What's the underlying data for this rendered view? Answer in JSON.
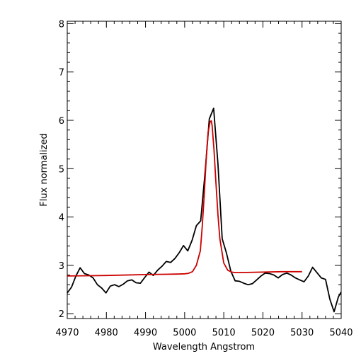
{
  "chart_data": {
    "type": "line",
    "title": "",
    "xlabel": "Wavelength Angstrom",
    "ylabel": "Flux normalized",
    "xlim": [
      4970,
      5040
    ],
    "ylim": [
      1.9,
      8.05
    ],
    "xticks": [
      4970,
      4980,
      4990,
      5000,
      5010,
      5020,
      5030,
      5040
    ],
    "yticks": [
      2,
      3,
      4,
      5,
      6,
      7,
      8
    ],
    "grid": false,
    "legend": "none",
    "colors": {
      "observed": "#000000",
      "fit": "#cc0000",
      "axes": "#000000"
    },
    "series": [
      {
        "key": "observed",
        "x": [
          4970.0,
          4971.1,
          4972.2,
          4973.3,
          4974.4,
          4975.5,
          4976.6,
          4977.7,
          4978.8,
          4979.9,
          4981.0,
          4982.1,
          4983.2,
          4984.3,
          4985.4,
          4986.5,
          4987.6,
          4988.7,
          4989.8,
          4990.9,
          4992.0,
          4993.1,
          4994.2,
          4995.3,
          4996.4,
          4997.5,
          4998.6,
          4999.7,
          5000.8,
          5001.9,
          5003.0,
          5004.1,
          5005.2,
          5006.3,
          5007.4,
          5008.5,
          5009.6,
          5010.7,
          5011.8,
          5012.9,
          5014.0,
          5015.1,
          5016.2,
          5017.3,
          5018.4,
          5019.5,
          5020.6,
          5021.7,
          5022.8,
          5023.9,
          5025.0,
          5026.1,
          5027.2,
          5028.3,
          5029.4,
          5030.5,
          5031.6,
          5032.7,
          5033.8,
          5034.9,
          5036.0,
          5037.1,
          5038.2,
          5039.3,
          5040.0
        ],
        "y": [
          2.43,
          2.55,
          2.78,
          2.95,
          2.83,
          2.8,
          2.74,
          2.6,
          2.53,
          2.43,
          2.57,
          2.6,
          2.56,
          2.61,
          2.68,
          2.7,
          2.64,
          2.63,
          2.75,
          2.86,
          2.79,
          2.9,
          2.98,
          3.08,
          3.06,
          3.14,
          3.26,
          3.41,
          3.3,
          3.52,
          3.82,
          3.92,
          4.9,
          6.03,
          6.25,
          5.1,
          3.55,
          3.25,
          2.88,
          2.68,
          2.67,
          2.63,
          2.6,
          2.62,
          2.7,
          2.78,
          2.84,
          2.83,
          2.8,
          2.74,
          2.81,
          2.84,
          2.8,
          2.74,
          2.7,
          2.66,
          2.78,
          2.96,
          2.85,
          2.74,
          2.71,
          2.3,
          2.04,
          2.35,
          2.45
        ]
      },
      {
        "key": "fit",
        "x": [
          4970,
          4980,
          4990,
          4995,
          4998,
          5000,
          5001,
          5002,
          5003,
          5004,
          5004.5,
          5005,
          5005.5,
          5006,
          5006.5,
          5006.8,
          5007,
          5007.5,
          5008,
          5008.5,
          5009,
          5010,
          5011,
          5012,
          5013,
          5014,
          5020,
          5025,
          5030
        ],
        "y": [
          2.78,
          2.79,
          2.81,
          2.815,
          2.82,
          2.825,
          2.835,
          2.87,
          3.0,
          3.3,
          3.8,
          4.45,
          5.2,
          5.75,
          5.97,
          5.99,
          5.9,
          5.4,
          4.7,
          4.05,
          3.55,
          3.05,
          2.9,
          2.86,
          2.85,
          2.85,
          2.86,
          2.87,
          2.87
        ]
      }
    ]
  }
}
